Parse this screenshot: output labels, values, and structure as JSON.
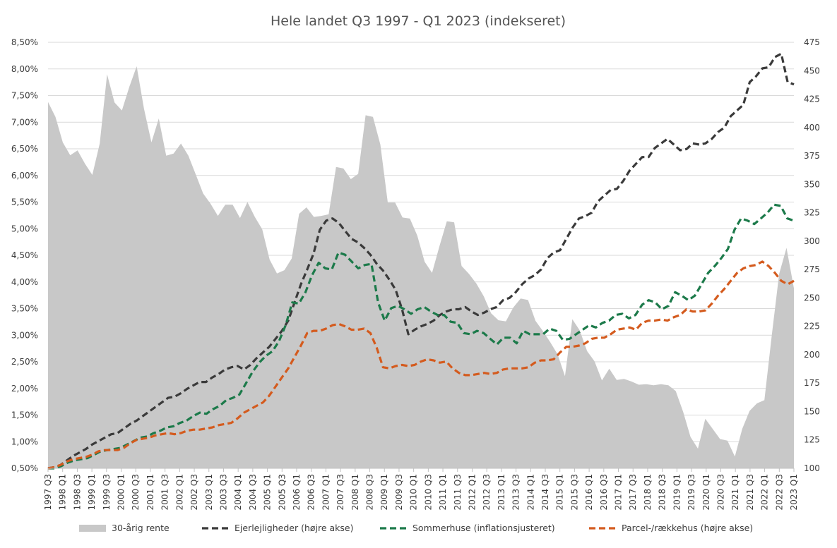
{
  "chart_data": {
    "type": "line",
    "title": "Hele landet Q3 1997 - Q1 2023 (indekseret)",
    "x_tick_labels": [
      "1997 Q3",
      "1998 Q1",
      "1998 Q3",
      "1999 Q1",
      "1999 Q3",
      "2000 Q1",
      "2000 Q3",
      "2001 Q1",
      "2001 Q3",
      "2002 Q1",
      "2002 Q3",
      "2003 Q1",
      "2003 Q3",
      "2004 Q1",
      "2004 Q3",
      "2005 Q1",
      "2005 Q3",
      "2006 Q1",
      "2006 Q3",
      "2007 Q1",
      "2007 Q3",
      "2008 Q1",
      "2008 Q3",
      "2009 Q1",
      "2009 Q3",
      "2010 Q1",
      "2010 Q3",
      "2011 Q1",
      "2011 Q3",
      "2012 Q1",
      "2012 Q3",
      "2013 Q1",
      "2013 Q3",
      "2014 Q1",
      "2014 Q3",
      "2015 Q1",
      "2015 Q3",
      "2016 Q1",
      "2016 Q3",
      "2017 Q1",
      "2017 Q3",
      "2018 Q1",
      "2018 Q3",
      "2019 Q1",
      "2019 Q3",
      "2020 Q1",
      "2020 Q3",
      "2021 Q1",
      "2021 Q3",
      "2022 Q1",
      "2022 Q3",
      "2023 Q1"
    ],
    "left_axis": {
      "ylim": [
        0.5,
        8.5
      ],
      "tick_labels": [
        "0,50%",
        "1,00%",
        "1,50%",
        "2,00%",
        "2,50%",
        "3,00%",
        "3,50%",
        "4,00%",
        "4,50%",
        "5,00%",
        "5,50%",
        "6,00%",
        "6,50%",
        "7,00%",
        "7,50%",
        "8,00%",
        "8,50%"
      ]
    },
    "right_axis": {
      "ylim": [
        100,
        475
      ],
      "tick_labels": [
        "100",
        "125",
        "150",
        "175",
        "200",
        "225",
        "250",
        "275",
        "300",
        "325",
        "350",
        "375",
        "400",
        "425",
        "450",
        "475"
      ]
    },
    "grid": true,
    "legend_position": "bottom",
    "series": [
      {
        "name": "30-årig rente",
        "kind": "area",
        "axis": "left",
        "color": "#c8c8c8",
        "values": [
          7.38,
          7.1,
          6.62,
          6.38,
          6.47,
          6.22,
          6.01,
          6.6,
          7.9,
          7.37,
          7.22,
          7.66,
          8.05,
          7.25,
          6.62,
          7.07,
          6.37,
          6.41,
          6.6,
          6.37,
          6.02,
          5.66,
          5.47,
          5.24,
          5.45,
          5.45,
          5.2,
          5.5,
          5.22,
          4.99,
          4.42,
          4.16,
          4.22,
          4.44,
          5.28,
          5.4,
          5.22,
          5.24,
          5.27,
          6.16,
          6.13,
          5.93,
          6.03,
          7.13,
          7.1,
          6.58,
          5.49,
          5.49,
          5.21,
          5.19,
          4.87,
          4.38,
          4.17,
          4.67,
          5.14,
          5.12,
          4.3,
          4.15,
          3.97,
          3.73,
          3.41,
          3.28,
          3.26,
          3.52,
          3.69,
          3.66,
          3.27,
          3.08,
          2.87,
          2.64,
          2.23,
          3.3,
          3.09,
          2.7,
          2.51,
          2.15,
          2.37,
          2.16,
          2.18,
          2.13,
          2.07,
          2.08,
          2.06,
          2.08,
          2.06,
          1.95,
          1.56,
          1.09,
          0.87,
          1.43,
          1.24,
          1.05,
          1.02,
          0.72,
          1.24,
          1.58,
          1.72,
          1.78,
          2.99,
          4.15,
          4.64,
          3.88
        ]
      },
      {
        "name": "Ejerlejligheder (højre akse)",
        "kind": "line",
        "axis": "right",
        "color": "#3a3a3a",
        "values": [
          100,
          101,
          103,
          107,
          111,
          114,
          117,
          121,
          124,
          127,
          130,
          131,
          135,
          139,
          142,
          146,
          150,
          154,
          158,
          162,
          163,
          166,
          170,
          173,
          176,
          176,
          180,
          183,
          187,
          189,
          190,
          187,
          191,
          197,
          202,
          207,
          214,
          221,
          230,
          246,
          262,
          275,
          289,
          310,
          318,
          320,
          316,
          309,
          302,
          299,
          294,
          288,
          280,
          274,
          266,
          257,
          240,
          218,
          222,
          225,
          227,
          230,
          235,
          238,
          240,
          240,
          242,
          238,
          235,
          237,
          240,
          242,
          248,
          250,
          255,
          262,
          267,
          270,
          275,
          285,
          290,
          292,
          302,
          312,
          320,
          322,
          325,
          335,
          340,
          345,
          346,
          353,
          362,
          368,
          374,
          374,
          382,
          386,
          390,
          385,
          380,
          381,
          386,
          385,
          386,
          390,
          396,
          400,
          410,
          415,
          420,
          440,
          445,
          452,
          453,
          462,
          465,
          440,
          438
        ]
      }
    ],
    "series2": [
      {
        "name": "Sommerhuse (inflationsjusteret)",
        "kind": "line",
        "axis": "right",
        "color": "#1c7a4a",
        "values": [
          100,
          100,
          102,
          105,
          107,
          108,
          109,
          112,
          115,
          116,
          117,
          118,
          121,
          124,
          127,
          128,
          131,
          133,
          136,
          137,
          140,
          142,
          146,
          149,
          148,
          152,
          155,
          160,
          162,
          165,
          175,
          185,
          193,
          199,
          203,
          212,
          226,
          246,
          245,
          255,
          270,
          281,
          276,
          275,
          290,
          288,
          282,
          276,
          279,
          280,
          246,
          230,
          241,
          243,
          240,
          236,
          240,
          242,
          238,
          235,
          235,
          229,
          228,
          219,
          218,
          221,
          219,
          214,
          209,
          215,
          215,
          210,
          221,
          218,
          218,
          218,
          223,
          221,
          213,
          214,
          218,
          222,
          226,
          224,
          228,
          230,
          235,
          236,
          232,
          235,
          244,
          248,
          246,
          240,
          243,
          255,
          252,
          248,
          252,
          262,
          272,
          278,
          285,
          293,
          310,
          320,
          318,
          315,
          320,
          325,
          332,
          331,
          320,
          318
        ]
      },
      {
        "name": "Parcel-/rækkehus (højre akse)",
        "kind": "line",
        "axis": "right",
        "color": "#d45b1e",
        "values": [
          100,
          101,
          103,
          106,
          108,
          109,
          110,
          112,
          115,
          116,
          116,
          116,
          118,
          122,
          125,
          126,
          127,
          129,
          130,
          131,
          130,
          131,
          133,
          134,
          134,
          135,
          136,
          138,
          139,
          140,
          144,
          149,
          152,
          155,
          158,
          164,
          172,
          180,
          188,
          198,
          208,
          219,
          221,
          221,
          223,
          226,
          227,
          225,
          222,
          222,
          223,
          219,
          206,
          189,
          188,
          190,
          191,
          190,
          191,
          194,
          196,
          195,
          193,
          194,
          188,
          184,
          182,
          182,
          183,
          184,
          183,
          184,
          187,
          188,
          188,
          188,
          189,
          193,
          195,
          195,
          196,
          202,
          207,
          207,
          208,
          210,
          214,
          215,
          215,
          218,
          222,
          223,
          224,
          222,
          228,
          230,
          230,
          231,
          230,
          233,
          235,
          240,
          238,
          238,
          239,
          245,
          252,
          258,
          265,
          272,
          276,
          278,
          279,
          282,
          278,
          272,
          265,
          262,
          265
        ]
      }
    ]
  }
}
